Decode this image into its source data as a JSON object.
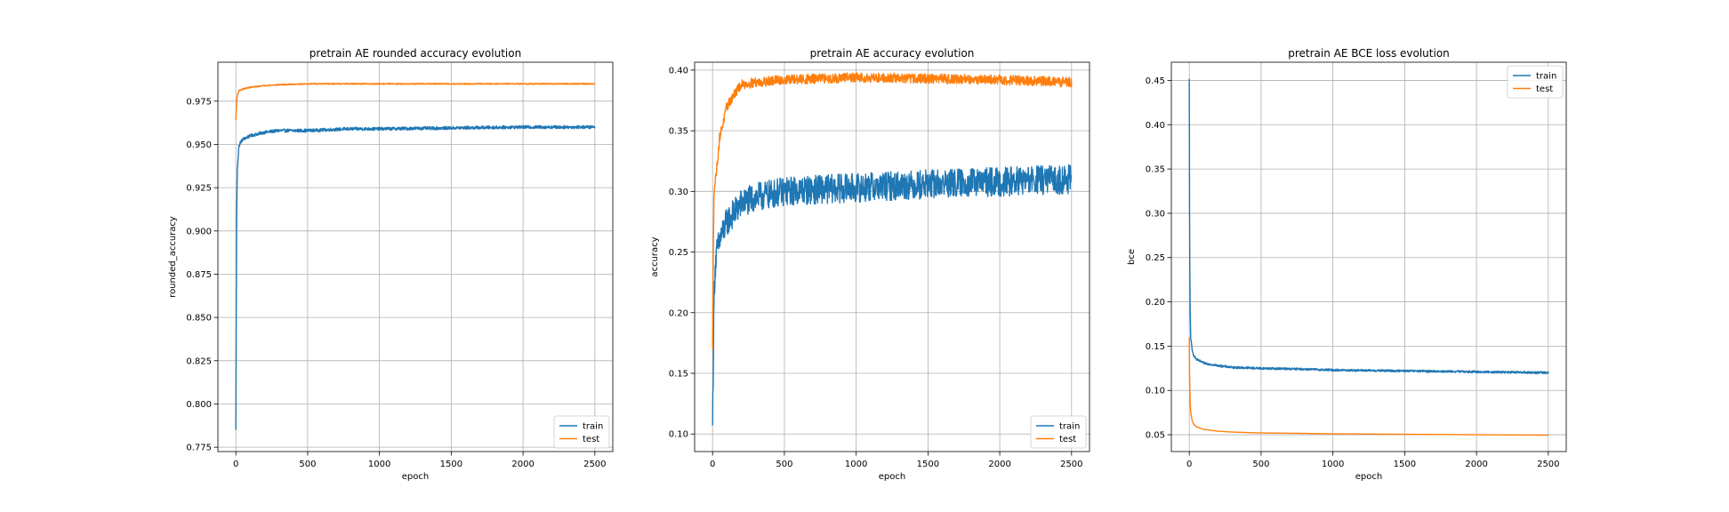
{
  "colors": {
    "train": "#1f77b4",
    "test": "#ff7f0e",
    "grid": "#b0b0b0"
  },
  "chart_data": [
    {
      "type": "line",
      "title": "pretrain AE rounded accuracy evolution",
      "xlabel": "epoch",
      "ylabel": "rounded_accuracy",
      "xlim": [
        -125,
        2625
      ],
      "ylim": [
        0.7725,
        0.9975
      ],
      "xticks": [
        "0",
        "500",
        "1000",
        "1500",
        "2000",
        "2500"
      ],
      "yticks": [
        "0.775",
        "0.800",
        "0.825",
        "0.850",
        "0.875",
        "0.900",
        "0.925",
        "0.950",
        "0.975"
      ],
      "grid": true,
      "legend": "lower-right",
      "legend_labels": [
        "train",
        "test"
      ],
      "series": [
        {
          "name": "train",
          "color": "#1f77b4",
          "noise": 0.0009,
          "x": [
            0,
            5,
            10,
            20,
            30,
            50,
            100,
            200,
            300,
            500,
            800,
            1000,
            1500,
            2000,
            2500
          ],
          "y": [
            0.785,
            0.905,
            0.935,
            0.948,
            0.951,
            0.953,
            0.955,
            0.957,
            0.958,
            0.958,
            0.959,
            0.959,
            0.9595,
            0.96,
            0.96
          ]
        },
        {
          "name": "test",
          "color": "#ff7f0e",
          "noise": 0.0003,
          "x": [
            0,
            5,
            10,
            20,
            50,
            100,
            200,
            300,
            500,
            800,
            1000,
            1500,
            2000,
            2500
          ],
          "y": [
            0.964,
            0.974,
            0.978,
            0.981,
            0.982,
            0.983,
            0.984,
            0.9845,
            0.985,
            0.985,
            0.985,
            0.985,
            0.985,
            0.985
          ]
        }
      ]
    },
    {
      "type": "line",
      "title": "pretrain AE accuracy evolution",
      "xlabel": "epoch",
      "ylabel": "accuracy",
      "xlim": [
        -125,
        2625
      ],
      "ylim": [
        0.0855,
        0.4065
      ],
      "xticks": [
        "0",
        "500",
        "1000",
        "1500",
        "2000",
        "2500"
      ],
      "yticks": [
        "0.10",
        "0.15",
        "0.20",
        "0.25",
        "0.30",
        "0.35",
        "0.40"
      ],
      "grid": true,
      "legend": "lower-right",
      "legend_labels": [
        "train",
        "test"
      ],
      "series": [
        {
          "name": "train",
          "color": "#1f77b4",
          "noise": 0.012,
          "x": [
            0,
            5,
            10,
            15,
            20,
            30,
            50,
            100,
            200,
            300,
            500,
            800,
            1000,
            1500,
            2000,
            2500
          ],
          "y": [
            0.107,
            0.16,
            0.21,
            0.23,
            0.24,
            0.25,
            0.26,
            0.275,
            0.29,
            0.295,
            0.3,
            0.302,
            0.303,
            0.306,
            0.308,
            0.31
          ]
        },
        {
          "name": "test",
          "color": "#ff7f0e",
          "noise": 0.004,
          "x": [
            0,
            5,
            10,
            20,
            30,
            50,
            100,
            150,
            200,
            300,
            500,
            800,
            1000,
            1500,
            2000,
            2500
          ],
          "y": [
            0.17,
            0.25,
            0.3,
            0.31,
            0.32,
            0.345,
            0.37,
            0.38,
            0.388,
            0.39,
            0.392,
            0.393,
            0.394,
            0.393,
            0.392,
            0.39
          ]
        }
      ]
    },
    {
      "type": "line",
      "title": "pretrain AE BCE loss evolution",
      "xlabel": "epoch",
      "ylabel": "bce",
      "xlim": [
        -125,
        2625
      ],
      "ylim": [
        0.031,
        0.4705
      ],
      "xticks": [
        "0",
        "500",
        "1000",
        "1500",
        "2000",
        "2500"
      ],
      "yticks": [
        "0.05",
        "0.10",
        "0.15",
        "0.20",
        "0.25",
        "0.30",
        "0.35",
        "0.40",
        "0.45"
      ],
      "grid": true,
      "legend": "upper-right",
      "legend_labels": [
        "train",
        "test"
      ],
      "series": [
        {
          "name": "train",
          "color": "#1f77b4",
          "noise": 0.0012,
          "x": [
            0,
            2,
            5,
            10,
            20,
            30,
            50,
            100,
            200,
            300,
            500,
            800,
            1000,
            1500,
            2000,
            2500
          ],
          "y": [
            0.452,
            0.3,
            0.2,
            0.16,
            0.145,
            0.14,
            0.135,
            0.131,
            0.128,
            0.126,
            0.125,
            0.124,
            0.123,
            0.122,
            0.121,
            0.12
          ]
        },
        {
          "name": "test",
          "color": "#ff7f0e",
          "noise": 0.0,
          "x": [
            0,
            2,
            5,
            10,
            20,
            30,
            50,
            100,
            200,
            300,
            500,
            800,
            1000,
            1500,
            2000,
            2500
          ],
          "y": [
            0.16,
            0.12,
            0.09,
            0.075,
            0.066,
            0.062,
            0.059,
            0.056,
            0.054,
            0.053,
            0.052,
            0.0515,
            0.051,
            0.0505,
            0.05,
            0.0495
          ]
        }
      ]
    }
  ]
}
